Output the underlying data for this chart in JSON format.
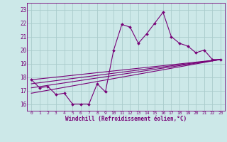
{
  "background_color": "#cce8e8",
  "grid_color": "#aacccc",
  "line_color": "#770077",
  "marker_color": "#770077",
  "xlabel": "Windchill (Refroidissement éolien,°C)",
  "xlim": [
    -0.5,
    23.5
  ],
  "ylim": [
    15.5,
    23.5
  ],
  "yticks": [
    16,
    17,
    18,
    19,
    20,
    21,
    22,
    23
  ],
  "xticks": [
    0,
    1,
    2,
    3,
    4,
    5,
    6,
    7,
    8,
    9,
    10,
    11,
    12,
    13,
    14,
    15,
    16,
    17,
    18,
    19,
    20,
    21,
    22,
    23
  ],
  "series1_x": [
    0,
    1,
    2,
    3,
    4,
    5,
    6,
    7,
    8,
    9,
    10,
    11,
    12,
    13,
    14,
    15,
    16,
    17,
    18,
    19,
    20,
    21,
    22,
    23
  ],
  "series1_y": [
    17.8,
    17.2,
    17.3,
    16.7,
    16.8,
    16.0,
    16.0,
    16.0,
    17.5,
    16.9,
    20.0,
    21.9,
    21.7,
    20.5,
    21.2,
    22.0,
    22.8,
    21.0,
    20.5,
    20.3,
    19.8,
    20.0,
    19.3,
    19.3
  ],
  "line2_x0": 0,
  "line2_y0": 17.8,
  "line2_x1": 23,
  "line2_y1": 19.3,
  "line3_x0": 0,
  "line3_y0": 17.5,
  "line3_x1": 23,
  "line3_y1": 19.3,
  "line4_x0": 0,
  "line4_y0": 17.2,
  "line4_x1": 23,
  "line4_y1": 19.3,
  "line5_x0": 0,
  "line5_y0": 16.8,
  "line5_x1": 23,
  "line5_y1": 19.3
}
